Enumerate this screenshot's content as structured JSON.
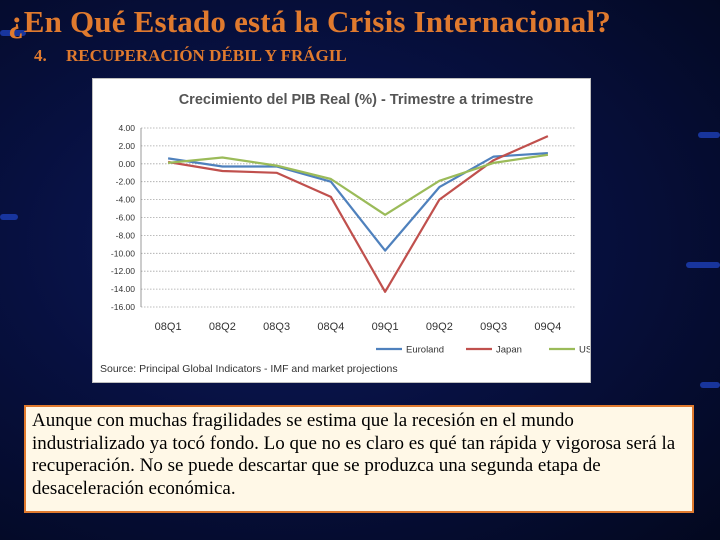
{
  "slide": {
    "title": "¿En Qué Estado está la Crisis Internacional?",
    "subtitle_number": "4.",
    "subtitle_text": "RECUPERACIÓN DÉBIL Y FRÁGIL",
    "body_text": "Aunque con muchas fragilidades se estima que la recesión en el mundo industrializado ya tocó fondo. Lo que no es claro es qué tan rápida y vigorosa será la recuperación. No se puede descartar que se produzca una segunda etapa de desaceleración económica."
  },
  "colors": {
    "title": "#e07a2e",
    "background": "#071040",
    "box_border": "#e07a2e"
  },
  "chart_data": {
    "type": "line",
    "title": "Crecimiento del PIB Real (%) - Trimestre a trimestre",
    "categories": [
      "08Q1",
      "08Q2",
      "08Q3",
      "08Q4",
      "09Q1",
      "09Q2",
      "09Q3",
      "09Q4"
    ],
    "y_tick_labels": [
      "4.00",
      "2.00",
      "0.00",
      "-2.00",
      "-4.00",
      "-6.00",
      "-8.00",
      "-10.00",
      "-12.00",
      "-14.00",
      "-16.00"
    ],
    "ylim": [
      -16,
      4
    ],
    "series": [
      {
        "name": "Euroland",
        "color": "#4f81bd",
        "values": [
          0.6,
          -0.3,
          -0.3,
          -2.0,
          -9.7,
          -2.6,
          0.8,
          1.2
        ]
      },
      {
        "name": "Japan",
        "color": "#c0504d",
        "values": [
          0.2,
          -0.8,
          -1.0,
          -3.7,
          -14.3,
          -4.0,
          0.4,
          3.1
        ]
      },
      {
        "name": "US",
        "color": "#9bbb59",
        "values": [
          0.1,
          0.7,
          -0.2,
          -1.7,
          -5.7,
          -1.9,
          0.1,
          1.0
        ]
      }
    ],
    "grid": true,
    "legend": "bottom-right",
    "source": "Source: Principal Global Indicators - IMF and market projections"
  }
}
